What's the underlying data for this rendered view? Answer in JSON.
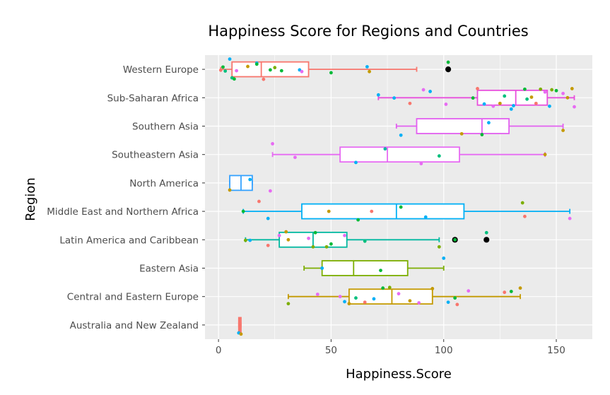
{
  "chart_data": {
    "type": "box",
    "orientation": "horizontal",
    "title": "Happiness Score for Regions and Countries",
    "xlabel": "Happiness.Score",
    "ylabel": "Region",
    "xlim": [
      -6,
      166
    ],
    "xticks": [
      0,
      50,
      100,
      150
    ],
    "grid": true,
    "legend": "none",
    "panel_background": "#ebebeb",
    "categories": [
      "Australia and New Zealand",
      "Central and Eastern Europe",
      "Eastern Asia",
      "Latin America and Caribbean",
      "Middle East and Northern Africa",
      "North America",
      "Southeastern Asia",
      "Southern Asia",
      "Sub-Saharan Africa",
      "Western Europe"
    ],
    "boxes": [
      {
        "region": "Australia and New Zealand",
        "color": "#f8766d",
        "min": 9,
        "q1": 9,
        "median": 9.5,
        "q3": 10,
        "max": 10,
        "outliers": []
      },
      {
        "region": "Central and Eastern Europe",
        "color": "#c49a00",
        "min": 31,
        "q1": 58,
        "median": 77,
        "q3": 95,
        "max": 134,
        "outliers": []
      },
      {
        "region": "Eastern Asia",
        "color": "#7cae00",
        "min": 38,
        "q1": 46,
        "median": 60,
        "q3": 84,
        "max": 100,
        "outliers": []
      },
      {
        "region": "Latin America and Caribbean",
        "color": "#00b8a0",
        "min": 12,
        "q1": 27,
        "median": 42,
        "q3": 57,
        "max": 98,
        "outliers": [
          105,
          119
        ]
      },
      {
        "region": "Middle East and Northern Africa",
        "color": "#00b0f6",
        "min": 11,
        "q1": 37,
        "median": 79,
        "q3": 109,
        "max": 156,
        "outliers": []
      },
      {
        "region": "North America",
        "color": "#35a2ff",
        "min": 5,
        "q1": 5,
        "median": 10,
        "q3": 15,
        "max": 15,
        "outliers": []
      },
      {
        "region": "Southeastern Asia",
        "color": "#e76bf3",
        "min": 24,
        "q1": 54,
        "median": 75,
        "q3": 107,
        "max": 145,
        "outliers": []
      },
      {
        "region": "Southern Asia",
        "color": "#e25ff0",
        "min": 79,
        "q1": 88,
        "median": 117,
        "q3": 129,
        "max": 153,
        "outliers": []
      },
      {
        "region": "Sub-Saharan Africa",
        "color": "#e84fdc",
        "min": 71,
        "q1": 115,
        "median": 132,
        "q3": 146,
        "max": 158,
        "outliers": []
      },
      {
        "region": "Western Europe",
        "color": "#f8766d",
        "min": 1,
        "q1": 6,
        "median": 19,
        "q3": 40,
        "max": 88,
        "outliers": [
          102
        ]
      }
    ],
    "points": [
      {
        "region": "Western Europe",
        "x": 1,
        "jitter": 0.03,
        "color": "#f8766d"
      },
      {
        "region": "Western Europe",
        "x": 2,
        "jitter": -0.08,
        "color": "#00ba38"
      },
      {
        "region": "Western Europe",
        "x": 3,
        "jitter": 0.06,
        "color": "#00bf7d"
      },
      {
        "region": "Western Europe",
        "x": 5,
        "jitter": -0.36,
        "color": "#00b0f6"
      },
      {
        "region": "Western Europe",
        "x": 6,
        "jitter": 0.3,
        "color": "#00bf7d"
      },
      {
        "region": "Western Europe",
        "x": 7,
        "jitter": 0.34,
        "color": "#00ba38"
      },
      {
        "region": "Western Europe",
        "x": 8,
        "jitter": 0.05,
        "color": "#e76bf3"
      },
      {
        "region": "Western Europe",
        "x": 13,
        "jitter": -0.1,
        "color": "#c49a00"
      },
      {
        "region": "Western Europe",
        "x": 17,
        "jitter": -0.22,
        "color": "#00b0f6"
      },
      {
        "region": "Western Europe",
        "x": 17,
        "jitter": -0.18,
        "color": "#00ba38"
      },
      {
        "region": "Western Europe",
        "x": 20,
        "jitter": 0.35,
        "color": "#f8766d"
      },
      {
        "region": "Western Europe",
        "x": 23,
        "jitter": 0.02,
        "color": "#00ba38"
      },
      {
        "region": "Western Europe",
        "x": 25,
        "jitter": -0.06,
        "color": "#7cae00"
      },
      {
        "region": "Western Europe",
        "x": 28,
        "jitter": 0.05,
        "color": "#00ba38"
      },
      {
        "region": "Western Europe",
        "x": 36,
        "jitter": 0.02,
        "color": "#00b0f6"
      },
      {
        "region": "Western Europe",
        "x": 37,
        "jitter": 0.08,
        "color": "#e76bf3"
      },
      {
        "region": "Western Europe",
        "x": 50,
        "jitter": 0.12,
        "color": "#00ba38"
      },
      {
        "region": "Western Europe",
        "x": 66,
        "jitter": -0.09,
        "color": "#00b0f6"
      },
      {
        "region": "Western Europe",
        "x": 67,
        "jitter": 0.08,
        "color": "#c49a00"
      },
      {
        "region": "Western Europe",
        "x": 102,
        "jitter": -0.25,
        "color": "#00ba38"
      },
      {
        "region": "Sub-Saharan Africa",
        "x": 71,
        "jitter": -0.1,
        "color": "#00b0f6"
      },
      {
        "region": "Sub-Saharan Africa",
        "x": 78,
        "jitter": 0.01,
        "color": "#00b0f6"
      },
      {
        "region": "Sub-Saharan Africa",
        "x": 85,
        "jitter": 0.2,
        "color": "#f8766d"
      },
      {
        "region": "Sub-Saharan Africa",
        "x": 91,
        "jitter": -0.28,
        "color": "#e76bf3"
      },
      {
        "region": "Sub-Saharan Africa",
        "x": 94,
        "jitter": -0.22,
        "color": "#00b0f6"
      },
      {
        "region": "Sub-Saharan Africa",
        "x": 101,
        "jitter": 0.23,
        "color": "#e76bf3"
      },
      {
        "region": "Sub-Saharan Africa",
        "x": 113,
        "jitter": 0.01,
        "color": "#00ba38"
      },
      {
        "region": "Sub-Saharan Africa",
        "x": 115,
        "jitter": -0.32,
        "color": "#f8766d"
      },
      {
        "region": "Sub-Saharan Africa",
        "x": 118,
        "jitter": 0.22,
        "color": "#00b0f6"
      },
      {
        "region": "Sub-Saharan Africa",
        "x": 122,
        "jitter": 0.3,
        "color": "#e76bf3"
      },
      {
        "region": "Sub-Saharan Africa",
        "x": 125,
        "jitter": 0.2,
        "color": "#c49a00"
      },
      {
        "region": "Sub-Saharan Africa",
        "x": 127,
        "jitter": -0.06,
        "color": "#00bf7d"
      },
      {
        "region": "Sub-Saharan Africa",
        "x": 131,
        "jitter": 0.28,
        "color": "#00b0f6"
      },
      {
        "region": "Sub-Saharan Africa",
        "x": 136,
        "jitter": -0.3,
        "color": "#00ba38"
      },
      {
        "region": "Sub-Saharan Africa",
        "x": 137,
        "jitter": 0.05,
        "color": "#00bf7d"
      },
      {
        "region": "Sub-Saharan Africa",
        "x": 139,
        "jitter": -0.02,
        "color": "#c49a00"
      },
      {
        "region": "Sub-Saharan Africa",
        "x": 141,
        "jitter": 0.2,
        "color": "#f8766d"
      },
      {
        "region": "Sub-Saharan Africa",
        "x": 143,
        "jitter": -0.3,
        "color": "#7cae00"
      },
      {
        "region": "Sub-Saharan Africa",
        "x": 145,
        "jitter": -0.2,
        "color": "#e76bf3"
      },
      {
        "region": "Sub-Saharan Africa",
        "x": 147,
        "jitter": 0.3,
        "color": "#00b0f6"
      },
      {
        "region": "Sub-Saharan Africa",
        "x": 148,
        "jitter": -0.28,
        "color": "#7cae00"
      },
      {
        "region": "Sub-Saharan Africa",
        "x": 150,
        "jitter": -0.25,
        "color": "#00ba38"
      },
      {
        "region": "Sub-Saharan Africa",
        "x": 153,
        "jitter": -0.15,
        "color": "#e76bf3"
      },
      {
        "region": "Sub-Saharan Africa",
        "x": 155,
        "jitter": 0.0,
        "color": "#c49a00"
      },
      {
        "region": "Sub-Saharan Africa",
        "x": 157,
        "jitter": -0.32,
        "color": "#c49a00"
      },
      {
        "region": "Sub-Saharan Africa",
        "x": 158,
        "jitter": 0.32,
        "color": "#e76bf3"
      },
      {
        "region": "Southern Asia",
        "x": 81,
        "jitter": 0.32,
        "color": "#00b0f6"
      },
      {
        "region": "Southern Asia",
        "x": 108,
        "jitter": 0.27,
        "color": "#c49a00"
      },
      {
        "region": "Southern Asia",
        "x": 117,
        "jitter": 0.3,
        "color": "#00ba38"
      },
      {
        "region": "Southern Asia",
        "x": 120,
        "jitter": -0.12,
        "color": "#00b0f6"
      },
      {
        "region": "Southern Asia",
        "x": 130,
        "jitter": -0.6,
        "color": "#00b0f6"
      },
      {
        "region": "Southern Asia",
        "x": 153,
        "jitter": 0.15,
        "color": "#c49a00"
      },
      {
        "region": "Southeastern Asia",
        "x": 24,
        "jitter": -0.38,
        "color": "#e76bf3"
      },
      {
        "region": "Southeastern Asia",
        "x": 34,
        "jitter": 0.1,
        "color": "#e76bf3"
      },
      {
        "region": "Southeastern Asia",
        "x": 61,
        "jitter": 0.28,
        "color": "#00b0f6"
      },
      {
        "region": "Southeastern Asia",
        "x": 74,
        "jitter": -0.2,
        "color": "#00b8a0"
      },
      {
        "region": "Southeastern Asia",
        "x": 90,
        "jitter": 0.32,
        "color": "#e76bf3"
      },
      {
        "region": "Southeastern Asia",
        "x": 98,
        "jitter": 0.05,
        "color": "#00bf7d"
      },
      {
        "region": "Southeastern Asia",
        "x": 145,
        "jitter": 0.0,
        "color": "#c49a00"
      },
      {
        "region": "North America",
        "x": 5,
        "jitter": 0.25,
        "color": "#c49a00"
      },
      {
        "region": "North America",
        "x": 14,
        "jitter": -0.12,
        "color": "#00b0f6"
      },
      {
        "region": "Middle East and Northern Africa",
        "x": 11,
        "jitter": 0.0,
        "color": "#00ba38"
      },
      {
        "region": "Middle East and Northern Africa",
        "x": 18,
        "jitter": -0.35,
        "color": "#f8766d"
      },
      {
        "region": "Middle East and Northern Africa",
        "x": 22,
        "jitter": 0.25,
        "color": "#00b0f6"
      },
      {
        "region": "Middle East and Northern Africa",
        "x": 23,
        "jitter": -0.72,
        "color": "#e76bf3"
      },
      {
        "region": "Middle East and Northern Africa",
        "x": 49,
        "jitter": 0.0,
        "color": "#c49a00"
      },
      {
        "region": "Middle East and Northern Africa",
        "x": 62,
        "jitter": 0.3,
        "color": "#00ba38"
      },
      {
        "region": "Middle East and Northern Africa",
        "x": 68,
        "jitter": 0.0,
        "color": "#f8766d"
      },
      {
        "region": "Middle East and Northern Africa",
        "x": 81,
        "jitter": -0.15,
        "color": "#00ba38"
      },
      {
        "region": "Middle East and Northern Africa",
        "x": 92,
        "jitter": 0.2,
        "color": "#00b0f6"
      },
      {
        "region": "Middle East and Northern Africa",
        "x": 135,
        "jitter": -0.3,
        "color": "#7cae00"
      },
      {
        "region": "Middle East and Northern Africa",
        "x": 136,
        "jitter": 0.18,
        "color": "#f8766d"
      },
      {
        "region": "Middle East and Northern Africa",
        "x": 156,
        "jitter": 0.25,
        "color": "#e76bf3"
      },
      {
        "region": "Latin America and Caribbean",
        "x": 12,
        "jitter": 0.02,
        "color": "#7cae00"
      },
      {
        "region": "Latin America and Caribbean",
        "x": 14,
        "jitter": 0.02,
        "color": "#00b0f6"
      },
      {
        "region": "Latin America and Caribbean",
        "x": 22,
        "jitter": 0.2,
        "color": "#f8766d"
      },
      {
        "region": "Latin America and Caribbean",
        "x": 27,
        "jitter": -0.15,
        "color": "#e76bf3"
      },
      {
        "region": "Latin America and Caribbean",
        "x": 30,
        "jitter": -0.28,
        "color": "#c49a00"
      },
      {
        "region": "Latin America and Caribbean",
        "x": 31,
        "jitter": 0.0,
        "color": "#c49a00"
      },
      {
        "region": "Latin America and Caribbean",
        "x": 40,
        "jitter": -0.05,
        "color": "#e76bf3"
      },
      {
        "region": "Latin America and Caribbean",
        "x": 42,
        "jitter": 0.25,
        "color": "#7cae00"
      },
      {
        "region": "Latin America and Caribbean",
        "x": 43,
        "jitter": -0.25,
        "color": "#00ba38"
      },
      {
        "region": "Latin America and Caribbean",
        "x": 48,
        "jitter": 0.25,
        "color": "#7cae00"
      },
      {
        "region": "Latin America and Caribbean",
        "x": 50,
        "jitter": 0.15,
        "color": "#00ba38"
      },
      {
        "region": "Latin America and Caribbean",
        "x": 56,
        "jitter": -0.15,
        "color": "#e76bf3"
      },
      {
        "region": "Latin America and Caribbean",
        "x": 65,
        "jitter": 0.05,
        "color": "#00bf7d"
      },
      {
        "region": "Latin America and Caribbean",
        "x": 98,
        "jitter": 0.25,
        "color": "#7cae00"
      },
      {
        "region": "Latin America and Caribbean",
        "x": 105,
        "jitter": 0.0,
        "color": "#00ba38"
      },
      {
        "region": "Latin America and Caribbean",
        "x": 119,
        "jitter": -0.25,
        "color": "#00bf7d"
      },
      {
        "region": "Eastern Asia",
        "x": 46,
        "jitter": 0.0,
        "color": "#00b0f6"
      },
      {
        "region": "Eastern Asia",
        "x": 72,
        "jitter": 0.08,
        "color": "#00ba38"
      },
      {
        "region": "Eastern Asia",
        "x": 100,
        "jitter": -0.35,
        "color": "#00b0f6"
      },
      {
        "region": "Central and Eastern Europe",
        "x": 31,
        "jitter": 0.25,
        "color": "#7cae00"
      },
      {
        "region": "Central and Eastern Europe",
        "x": 44,
        "jitter": -0.08,
        "color": "#e76bf3"
      },
      {
        "region": "Central and Eastern Europe",
        "x": 54,
        "jitter": 0.0,
        "color": "#e76bf3"
      },
      {
        "region": "Central and Eastern Europe",
        "x": 56,
        "jitter": 0.18,
        "color": "#00b0f6"
      },
      {
        "region": "Central and Eastern Europe",
        "x": 58,
        "jitter": 0.25,
        "color": "#c49a00"
      },
      {
        "region": "Central and Eastern Europe",
        "x": 61,
        "jitter": 0.05,
        "color": "#00bf7d"
      },
      {
        "region": "Central and Eastern Europe",
        "x": 65,
        "jitter": 0.2,
        "color": "#f8766d"
      },
      {
        "region": "Central and Eastern Europe",
        "x": 69,
        "jitter": 0.08,
        "color": "#00b0f6"
      },
      {
        "region": "Central and Eastern Europe",
        "x": 73,
        "jitter": -0.3,
        "color": "#00ba38"
      },
      {
        "region": "Central and Eastern Europe",
        "x": 76,
        "jitter": -0.32,
        "color": "#7cae00"
      },
      {
        "region": "Central and Eastern Europe",
        "x": 80,
        "jitter": -0.1,
        "color": "#e76bf3"
      },
      {
        "region": "Central and Eastern Europe",
        "x": 85,
        "jitter": 0.15,
        "color": "#c49a00"
      },
      {
        "region": "Central and Eastern Europe",
        "x": 89,
        "jitter": 0.22,
        "color": "#e76bf3"
      },
      {
        "region": "Central and Eastern Europe",
        "x": 95,
        "jitter": -0.28,
        "color": "#c49a00"
      },
      {
        "region": "Central and Eastern Europe",
        "x": 102,
        "jitter": 0.2,
        "color": "#00b0f6"
      },
      {
        "region": "Central and Eastern Europe",
        "x": 105,
        "jitter": 0.05,
        "color": "#00ba38"
      },
      {
        "region": "Central and Eastern Europe",
        "x": 106,
        "jitter": 0.28,
        "color": "#f8766d"
      },
      {
        "region": "Central and Eastern Europe",
        "x": 111,
        "jitter": -0.2,
        "color": "#e76bf3"
      },
      {
        "region": "Central and Eastern Europe",
        "x": 127,
        "jitter": -0.15,
        "color": "#f8766d"
      },
      {
        "region": "Central and Eastern Europe",
        "x": 130,
        "jitter": -0.18,
        "color": "#00ba38"
      },
      {
        "region": "Central and Eastern Europe",
        "x": 134,
        "jitter": -0.3,
        "color": "#c49a00"
      },
      {
        "region": "Australia and New Zealand",
        "x": 9,
        "jitter": 0.28,
        "color": "#00b0f6"
      },
      {
        "region": "Australia and New Zealand",
        "x": 10,
        "jitter": 0.32,
        "color": "#c49a00"
      }
    ]
  }
}
